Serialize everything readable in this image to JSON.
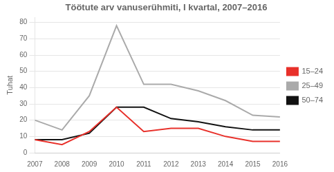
{
  "chart_data": {
    "type": "line",
    "title": "Töötute arv vanuserühmiti, I kvartal, 2007–2016",
    "y_label": "Tuhat",
    "x": [
      2007,
      2008,
      2009,
      2010,
      2011,
      2012,
      2013,
      2014,
      2015,
      2016
    ],
    "series": [
      {
        "name": "15–24",
        "color": "#e8302a",
        "values": [
          8,
          5,
          13,
          28,
          13,
          15,
          15,
          10,
          7,
          7
        ]
      },
      {
        "name": "25–49",
        "color": "#aaaaaa",
        "values": [
          20,
          14,
          35,
          78,
          42,
          42,
          38,
          32,
          23,
          22
        ]
      },
      {
        "name": "50–74",
        "color": "#111111",
        "values": [
          8,
          8,
          12,
          28,
          28,
          21,
          19,
          16,
          14,
          14
        ]
      }
    ],
    "xlim": [
      2007,
      2016
    ],
    "xticks": [
      2007,
      2008,
      2009,
      2010,
      2011,
      2012,
      2013,
      2014,
      2015,
      2016
    ],
    "ylim": [
      0,
      83
    ],
    "yticks": [
      0,
      10,
      20,
      30,
      40,
      50,
      60,
      70,
      80
    ],
    "grid": true,
    "legend": "right"
  }
}
